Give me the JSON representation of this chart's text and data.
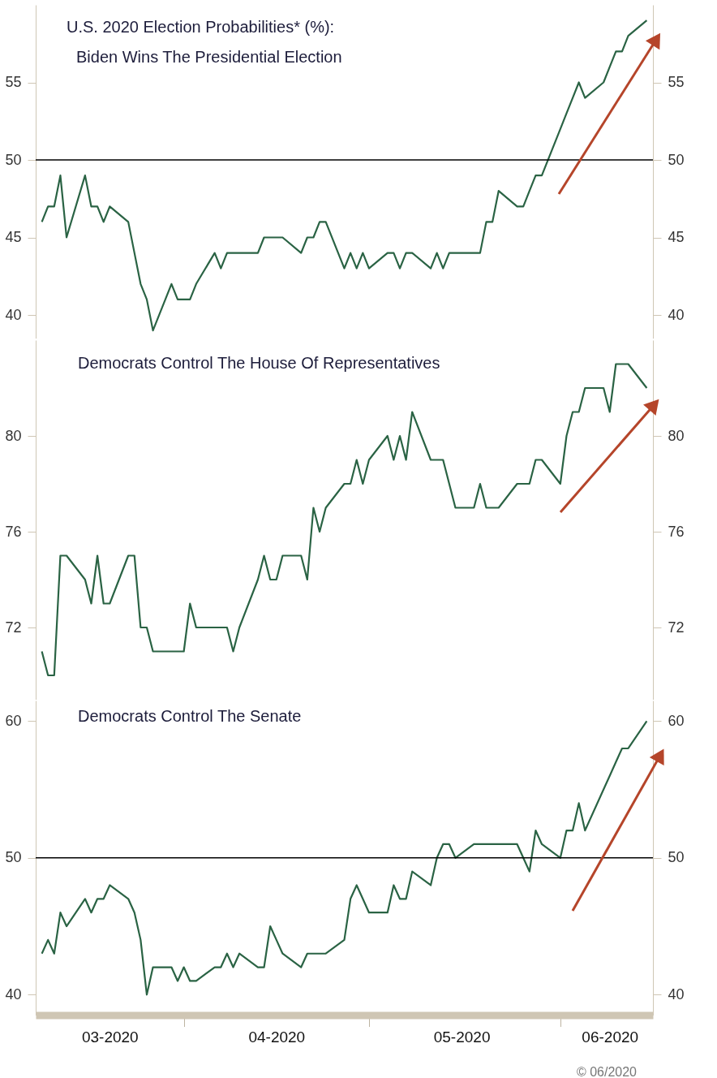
{
  "chart_data": [
    {
      "type": "line",
      "title": "U.S. 2020 Election Probabilities* (%):",
      "subtitle": "Biden Wins The Presidential Election",
      "x": [
        "2020-03-09",
        "2020-03-10",
        "2020-03-11",
        "2020-03-12",
        "2020-03-13",
        "2020-03-16",
        "2020-03-17",
        "2020-03-18",
        "2020-03-19",
        "2020-03-20",
        "2020-03-23",
        "2020-03-24",
        "2020-03-25",
        "2020-03-26",
        "2020-03-27",
        "2020-03-30",
        "2020-03-31",
        "2020-04-01",
        "2020-04-02",
        "2020-04-03",
        "2020-04-06",
        "2020-04-07",
        "2020-04-08",
        "2020-04-09",
        "2020-04-10",
        "2020-04-13",
        "2020-04-14",
        "2020-04-15",
        "2020-04-16",
        "2020-04-17",
        "2020-04-20",
        "2020-04-21",
        "2020-04-22",
        "2020-04-23",
        "2020-04-24",
        "2020-04-27",
        "2020-04-28",
        "2020-04-29",
        "2020-04-30",
        "2020-05-01",
        "2020-05-04",
        "2020-05-05",
        "2020-05-06",
        "2020-05-07",
        "2020-05-08",
        "2020-05-11",
        "2020-05-12",
        "2020-05-13",
        "2020-05-14",
        "2020-05-15",
        "2020-05-18",
        "2020-05-19",
        "2020-05-20",
        "2020-05-21",
        "2020-05-22",
        "2020-05-25",
        "2020-05-26",
        "2020-05-27",
        "2020-05-28",
        "2020-05-29",
        "2020-06-01",
        "2020-06-02",
        "2020-06-03",
        "2020-06-04",
        "2020-06-05",
        "2020-06-08",
        "2020-06-09",
        "2020-06-10",
        "2020-06-11",
        "2020-06-12",
        "2020-06-15"
      ],
      "series": [
        {
          "color": "#2a6344",
          "values": [
            46,
            47,
            47,
            49,
            45,
            49,
            47,
            47,
            46,
            47,
            46,
            44,
            42,
            41,
            39,
            42,
            41,
            41,
            41,
            42,
            44,
            43,
            44,
            44,
            44,
            44,
            45,
            45,
            45,
            45,
            44,
            45,
            45,
            46,
            46,
            43,
            44,
            43,
            44,
            43,
            44,
            44,
            43,
            44,
            44,
            43,
            44,
            43,
            44,
            44,
            44,
            44,
            46,
            46,
            48,
            47,
            47,
            48,
            49,
            49,
            52,
            53,
            54,
            55,
            54,
            55,
            56,
            57,
            57,
            58,
            59
          ]
        }
      ],
      "xlim": [
        "2020-03-08",
        "2020-06-16"
      ],
      "ylim": [
        38.5,
        60
      ],
      "yticks": [
        40,
        45,
        50,
        55
      ],
      "y2lim": [
        38.5,
        60
      ],
      "y2ticks": [
        40,
        45,
        50,
        55
      ],
      "ref_lines": [
        {
          "axis": "y",
          "value": 50,
          "color": "#000000"
        }
      ],
      "tick_labels": "y"
    },
    {
      "type": "line",
      "title": "Democrats Control The House Of Representatives",
      "x": [
        "2020-03-09",
        "2020-03-10",
        "2020-03-11",
        "2020-03-12",
        "2020-03-13",
        "2020-03-16",
        "2020-03-17",
        "2020-03-18",
        "2020-03-19",
        "2020-03-20",
        "2020-03-23",
        "2020-03-24",
        "2020-03-25",
        "2020-03-26",
        "2020-03-27",
        "2020-03-30",
        "2020-03-31",
        "2020-04-01",
        "2020-04-02",
        "2020-04-03",
        "2020-04-06",
        "2020-04-07",
        "2020-04-08",
        "2020-04-09",
        "2020-04-10",
        "2020-04-13",
        "2020-04-14",
        "2020-04-15",
        "2020-04-16",
        "2020-04-17",
        "2020-04-20",
        "2020-04-21",
        "2020-04-22",
        "2020-04-23",
        "2020-04-24",
        "2020-04-27",
        "2020-04-28",
        "2020-04-29",
        "2020-04-30",
        "2020-05-01",
        "2020-05-04",
        "2020-05-05",
        "2020-05-06",
        "2020-05-07",
        "2020-05-08",
        "2020-05-11",
        "2020-05-12",
        "2020-05-13",
        "2020-05-14",
        "2020-05-15",
        "2020-05-18",
        "2020-05-19",
        "2020-05-20",
        "2020-05-21",
        "2020-05-22",
        "2020-05-25",
        "2020-05-26",
        "2020-05-27",
        "2020-05-28",
        "2020-05-29",
        "2020-06-01",
        "2020-06-02",
        "2020-06-03",
        "2020-06-04",
        "2020-06-05",
        "2020-06-08",
        "2020-06-09",
        "2020-06-10",
        "2020-06-11",
        "2020-06-12",
        "2020-06-15"
      ],
      "series": [
        {
          "color": "#2a6344",
          "values": [
            71,
            70,
            70,
            75,
            75,
            74,
            73,
            75,
            73,
            73,
            75,
            75,
            72,
            72,
            71,
            71,
            71,
            71,
            73,
            72,
            72,
            72,
            72,
            71,
            72,
            74,
            75,
            74,
            74,
            75,
            75,
            74,
            77,
            76,
            77,
            78,
            78,
            79,
            78,
            79,
            80,
            79,
            80,
            79,
            81,
            79,
            79,
            79,
            78,
            77,
            77,
            78,
            77,
            77,
            77,
            78,
            78,
            78,
            79,
            79,
            78,
            80,
            81,
            81,
            82,
            82,
            81,
            83,
            83,
            83,
            82
          ]
        }
      ],
      "xlim": [
        "2020-03-08",
        "2020-06-16"
      ],
      "ylim": [
        69,
        84
      ],
      "yticks": [
        72,
        76,
        80
      ],
      "y2lim": [
        69,
        84
      ],
      "y2ticks": [
        72,
        76,
        80
      ],
      "tick_labels": "y"
    },
    {
      "type": "line",
      "title": "Democrats Control The Senate",
      "x": [
        "2020-03-09",
        "2020-03-10",
        "2020-03-11",
        "2020-03-12",
        "2020-03-13",
        "2020-03-16",
        "2020-03-17",
        "2020-03-18",
        "2020-03-19",
        "2020-03-20",
        "2020-03-23",
        "2020-03-24",
        "2020-03-25",
        "2020-03-26",
        "2020-03-27",
        "2020-03-30",
        "2020-03-31",
        "2020-04-01",
        "2020-04-02",
        "2020-04-03",
        "2020-04-06",
        "2020-04-07",
        "2020-04-08",
        "2020-04-09",
        "2020-04-10",
        "2020-04-13",
        "2020-04-14",
        "2020-04-15",
        "2020-04-16",
        "2020-04-17",
        "2020-04-20",
        "2020-04-21",
        "2020-04-22",
        "2020-04-23",
        "2020-04-24",
        "2020-04-27",
        "2020-04-28",
        "2020-04-29",
        "2020-04-30",
        "2020-05-01",
        "2020-05-04",
        "2020-05-05",
        "2020-05-06",
        "2020-05-07",
        "2020-05-08",
        "2020-05-11",
        "2020-05-12",
        "2020-05-13",
        "2020-05-14",
        "2020-05-15",
        "2020-05-18",
        "2020-05-19",
        "2020-05-20",
        "2020-05-21",
        "2020-05-22",
        "2020-05-25",
        "2020-05-26",
        "2020-05-27",
        "2020-05-28",
        "2020-05-29",
        "2020-06-01",
        "2020-06-02",
        "2020-06-03",
        "2020-06-04",
        "2020-06-05",
        "2020-06-08",
        "2020-06-09",
        "2020-06-10",
        "2020-06-11",
        "2020-06-12",
        "2020-06-15"
      ],
      "series": [
        {
          "color": "#2a6344",
          "values": [
            43,
            44,
            43,
            46,
            45,
            47,
            46,
            47,
            47,
            48,
            47,
            46,
            44,
            40,
            42,
            42,
            41,
            42,
            41,
            41,
            42,
            42,
            43,
            42,
            43,
            42,
            42,
            45,
            44,
            43,
            42,
            43,
            43,
            43,
            43,
            44,
            47,
            48,
            47,
            46,
            46,
            48,
            47,
            47,
            49,
            48,
            50,
            51,
            51,
            50,
            51,
            51,
            51,
            51,
            51,
            51,
            50,
            49,
            52,
            51,
            50,
            52,
            52,
            54,
            52,
            55,
            56,
            57,
            58,
            58,
            60
          ]
        }
      ],
      "xlim": [
        "2020-03-08",
        "2020-06-16"
      ],
      "xticks": [
        {
          "value": "2020-03-20",
          "label": "03-2020"
        },
        {
          "value": "2020-04-01",
          "label": null
        },
        {
          "value": "2020-04-16",
          "label": "04-2020"
        },
        {
          "value": "2020-05-01",
          "label": null
        },
        {
          "value": "2020-05-16",
          "label": "05-2020"
        },
        {
          "value": "2020-06-01",
          "label": null
        },
        {
          "value": "2020-06-09",
          "label": "06-2020"
        }
      ],
      "ylim": [
        38.5,
        61.5
      ],
      "yticks": [
        40,
        50,
        60
      ],
      "y2lim": [
        38.5,
        61.5
      ],
      "y2ticks": [
        40,
        50,
        60
      ],
      "ref_lines": [
        {
          "axis": "y",
          "value": 50,
          "color": "#000000"
        }
      ],
      "annotations": [
        "© 06/2020"
      ]
    }
  ]
}
